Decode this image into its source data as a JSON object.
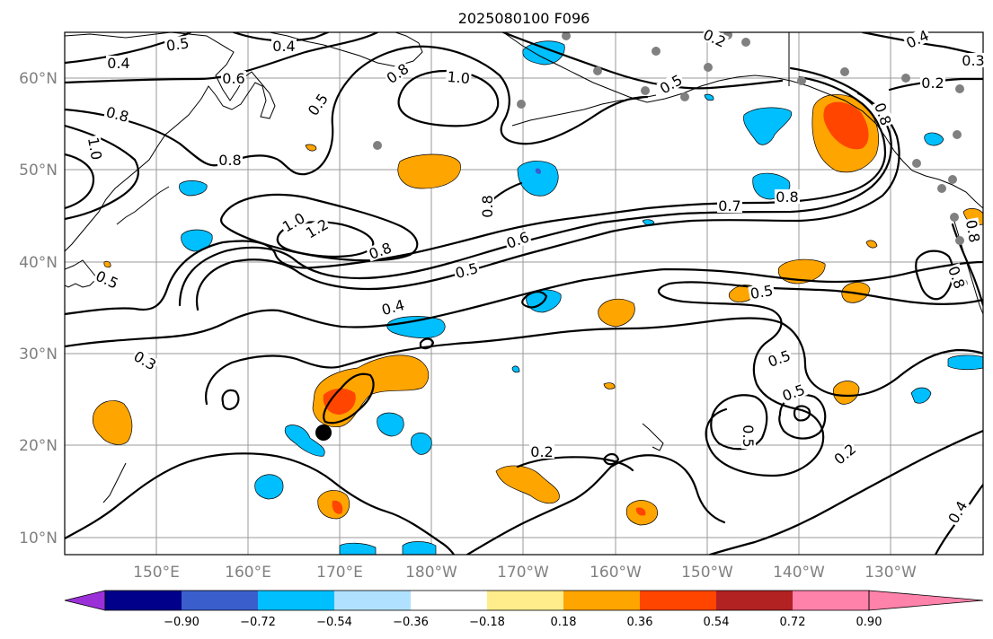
{
  "title": "2025080100 F096",
  "lat_labels": [
    "60°N",
    "50°N",
    "40°N",
    "30°N",
    "20°N",
    "10°N"
  ],
  "lon_labels": [
    "150°E",
    "160°E",
    "170°E",
    "180°W",
    "170°W",
    "160°W",
    "150°W",
    "140°W",
    "130°W"
  ],
  "contour_labels": [
    "0.5",
    "0.4",
    "0.4",
    "0.6",
    "0.5",
    "0.8",
    "1.0",
    "0.8",
    "0.2",
    "0.4",
    "0.3",
    "0.2",
    "0.8",
    "1.0",
    "0.8",
    "0.8",
    "1.0",
    "1.2",
    "0.8",
    "0.8",
    "0.7",
    "0.5",
    "0.6",
    "0.5",
    "0.4",
    "0.5",
    "0.5",
    "0.5",
    "0.5",
    "0.3",
    "0.2",
    "0.2",
    "0.4",
    "0.8",
    "0.8",
    "0.5"
  ],
  "colorbar": {
    "colors": [
      "#9b30d9",
      "#00008b",
      "#3a5fcd",
      "#00bfff",
      "#b0e2ff",
      "#ffffff",
      "#ffec8b",
      "#ffa500",
      "#ff4500",
      "#b22222",
      "#ff82ab"
    ],
    "tick_labels": [
      "−0.90",
      "−0.72",
      "−0.54",
      "−0.36",
      "−0.18",
      "0.18",
      "0.36",
      "0.54",
      "0.72",
      "0.90"
    ]
  },
  "marker": "storm-position-marker"
}
